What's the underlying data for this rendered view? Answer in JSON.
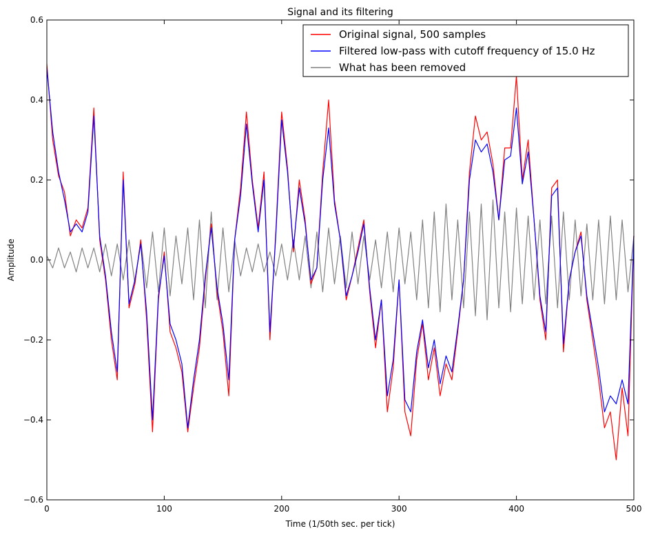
{
  "chart_data": {
    "type": "line",
    "title": "Signal and its filtering",
    "xlabel": "Time (1/50th sec. per tick)",
    "ylabel": "Amplitude",
    "xlim": [
      0,
      500
    ],
    "ylim": [
      -0.6,
      0.6
    ],
    "xticks": [
      0,
      100,
      200,
      300,
      400,
      500
    ],
    "yticks": [
      -0.6,
      -0.4,
      -0.2,
      0.0,
      0.2,
      0.4,
      0.6
    ],
    "xtick_labels": [
      "0",
      "100",
      "200",
      "300",
      "400",
      "500"
    ],
    "ytick_labels": [
      "−0.6",
      "−0.4",
      "−0.2",
      "0.0",
      "0.2",
      "0.4",
      "0.6"
    ],
    "grid": false,
    "legend_position": "top-right",
    "series": [
      {
        "name": "Original signal, 500 samples",
        "color": "#ff0000",
        "x": [
          0,
          5,
          10,
          15,
          20,
          25,
          30,
          35,
          40,
          45,
          50,
          55,
          60,
          65,
          70,
          75,
          80,
          85,
          90,
          95,
          100,
          105,
          110,
          115,
          120,
          125,
          130,
          135,
          140,
          145,
          150,
          155,
          160,
          165,
          170,
          175,
          180,
          185,
          190,
          195,
          200,
          205,
          210,
          215,
          220,
          225,
          230,
          235,
          240,
          245,
          250,
          255,
          260,
          265,
          270,
          275,
          280,
          285,
          290,
          295,
          300,
          305,
          310,
          315,
          320,
          325,
          330,
          335,
          340,
          345,
          350,
          355,
          360,
          365,
          370,
          375,
          380,
          385,
          390,
          395,
          400,
          405,
          410,
          415,
          420,
          425,
          430,
          435,
          440,
          445,
          450,
          455,
          460,
          465,
          470,
          475,
          480,
          485,
          490,
          495,
          500
        ],
        "values": [
          0.49,
          0.3,
          0.21,
          0.17,
          0.06,
          0.1,
          0.08,
          0.13,
          0.38,
          0.05,
          -0.05,
          -0.2,
          -0.3,
          0.22,
          -0.12,
          -0.06,
          0.05,
          -0.15,
          -0.43,
          -0.1,
          0.02,
          -0.18,
          -0.22,
          -0.28,
          -0.43,
          -0.32,
          -0.22,
          -0.05,
          0.09,
          -0.08,
          -0.18,
          -0.34,
          0.05,
          0.18,
          0.37,
          0.2,
          0.08,
          0.22,
          -0.2,
          0.07,
          0.37,
          0.23,
          0.02,
          0.2,
          0.1,
          -0.06,
          -0.02,
          0.22,
          0.4,
          0.15,
          0.05,
          -0.1,
          -0.04,
          0.03,
          0.1,
          -0.08,
          -0.22,
          -0.1,
          -0.38,
          -0.27,
          -0.05,
          -0.38,
          -0.44,
          -0.25,
          -0.16,
          -0.3,
          -0.22,
          -0.34,
          -0.26,
          -0.3,
          -0.18,
          -0.05,
          0.22,
          0.36,
          0.3,
          0.32,
          0.24,
          0.1,
          0.28,
          0.28,
          0.46,
          0.2,
          0.3,
          0.1,
          -0.1,
          -0.2,
          0.18,
          0.2,
          -0.23,
          -0.05,
          0.02,
          0.07,
          -0.1,
          -0.2,
          -0.3,
          -0.42,
          -0.38,
          -0.5,
          -0.32,
          -0.44,
          0.06
        ]
      },
      {
        "name": "Filtered low-pass with cutoff frequency of 15.0 Hz",
        "color": "#0000ff",
        "x": [
          0,
          5,
          10,
          15,
          20,
          25,
          30,
          35,
          40,
          45,
          50,
          55,
          60,
          65,
          70,
          75,
          80,
          85,
          90,
          95,
          100,
          105,
          110,
          115,
          120,
          125,
          130,
          135,
          140,
          145,
          150,
          155,
          160,
          165,
          170,
          175,
          180,
          185,
          190,
          195,
          200,
          205,
          210,
          215,
          220,
          225,
          230,
          235,
          240,
          245,
          250,
          255,
          260,
          265,
          270,
          275,
          280,
          285,
          290,
          295,
          300,
          305,
          310,
          315,
          320,
          325,
          330,
          335,
          340,
          345,
          350,
          355,
          360,
          365,
          370,
          375,
          380,
          385,
          390,
          395,
          400,
          405,
          410,
          415,
          420,
          425,
          430,
          435,
          440,
          445,
          450,
          455,
          460,
          465,
          470,
          475,
          480,
          485,
          490,
          495,
          500
        ],
        "values": [
          0.48,
          0.32,
          0.22,
          0.15,
          0.07,
          0.09,
          0.07,
          0.12,
          0.36,
          0.06,
          -0.04,
          -0.18,
          -0.28,
          0.2,
          -0.11,
          -0.05,
          0.04,
          -0.13,
          -0.4,
          -0.09,
          0.01,
          -0.16,
          -0.2,
          -0.26,
          -0.42,
          -0.3,
          -0.2,
          -0.04,
          0.08,
          -0.07,
          -0.16,
          -0.3,
          0.05,
          0.16,
          0.34,
          0.19,
          0.07,
          0.2,
          -0.18,
          0.06,
          0.35,
          0.22,
          0.03,
          0.18,
          0.09,
          -0.05,
          -0.02,
          0.2,
          0.33,
          0.14,
          0.05,
          -0.09,
          -0.04,
          0.02,
          0.09,
          -0.07,
          -0.2,
          -0.1,
          -0.34,
          -0.25,
          -0.05,
          -0.35,
          -0.38,
          -0.23,
          -0.15,
          -0.27,
          -0.2,
          -0.31,
          -0.24,
          -0.28,
          -0.17,
          -0.05,
          0.2,
          0.3,
          0.27,
          0.29,
          0.22,
          0.1,
          0.25,
          0.26,
          0.38,
          0.19,
          0.27,
          0.1,
          -0.09,
          -0.18,
          0.16,
          0.18,
          -0.21,
          -0.05,
          0.02,
          0.06,
          -0.09,
          -0.18,
          -0.27,
          -0.38,
          -0.34,
          -0.36,
          -0.3,
          -0.36,
          0.06
        ]
      },
      {
        "name": "What has been removed",
        "color": "#808080",
        "x": [
          0,
          5,
          10,
          15,
          20,
          25,
          30,
          35,
          40,
          45,
          50,
          55,
          60,
          65,
          70,
          75,
          80,
          85,
          90,
          95,
          100,
          105,
          110,
          115,
          120,
          125,
          130,
          135,
          140,
          145,
          150,
          155,
          160,
          165,
          170,
          175,
          180,
          185,
          190,
          195,
          200,
          205,
          210,
          215,
          220,
          225,
          230,
          235,
          240,
          245,
          250,
          255,
          260,
          265,
          270,
          275,
          280,
          285,
          290,
          295,
          300,
          305,
          310,
          315,
          320,
          325,
          330,
          335,
          340,
          345,
          350,
          355,
          360,
          365,
          370,
          375,
          380,
          385,
          390,
          395,
          400,
          405,
          410,
          415,
          420,
          425,
          430,
          435,
          440,
          445,
          450,
          455,
          460,
          465,
          470,
          475,
          480,
          485,
          490,
          495,
          500
        ],
        "values": [
          0.01,
          -0.02,
          0.03,
          -0.02,
          0.02,
          -0.03,
          0.03,
          -0.02,
          0.03,
          -0.03,
          0.04,
          -0.04,
          0.04,
          -0.05,
          0.05,
          -0.06,
          0.05,
          -0.07,
          0.07,
          -0.08,
          0.08,
          -0.09,
          0.06,
          -0.06,
          0.08,
          -0.1,
          0.1,
          -0.12,
          0.12,
          -0.1,
          0.08,
          -0.08,
          0.05,
          -0.04,
          0.03,
          -0.03,
          0.04,
          -0.03,
          0.02,
          -0.04,
          0.04,
          -0.05,
          0.05,
          -0.05,
          0.06,
          -0.07,
          0.07,
          -0.08,
          0.08,
          -0.06,
          0.06,
          -0.07,
          0.07,
          -0.06,
          0.06,
          -0.05,
          0.05,
          -0.07,
          0.07,
          -0.08,
          0.08,
          -0.06,
          0.07,
          -0.1,
          0.1,
          -0.12,
          0.12,
          -0.13,
          0.14,
          -0.1,
          0.1,
          -0.12,
          0.12,
          -0.14,
          0.14,
          -0.15,
          0.15,
          -0.12,
          0.12,
          -0.13,
          0.13,
          -0.11,
          0.11,
          -0.1,
          0.1,
          -0.11,
          0.11,
          -0.12,
          0.12,
          -0.1,
          0.1,
          -0.09,
          0.09,
          -0.1,
          0.1,
          -0.11,
          0.11,
          -0.1,
          0.1,
          -0.08,
          0.06
        ]
      }
    ]
  }
}
